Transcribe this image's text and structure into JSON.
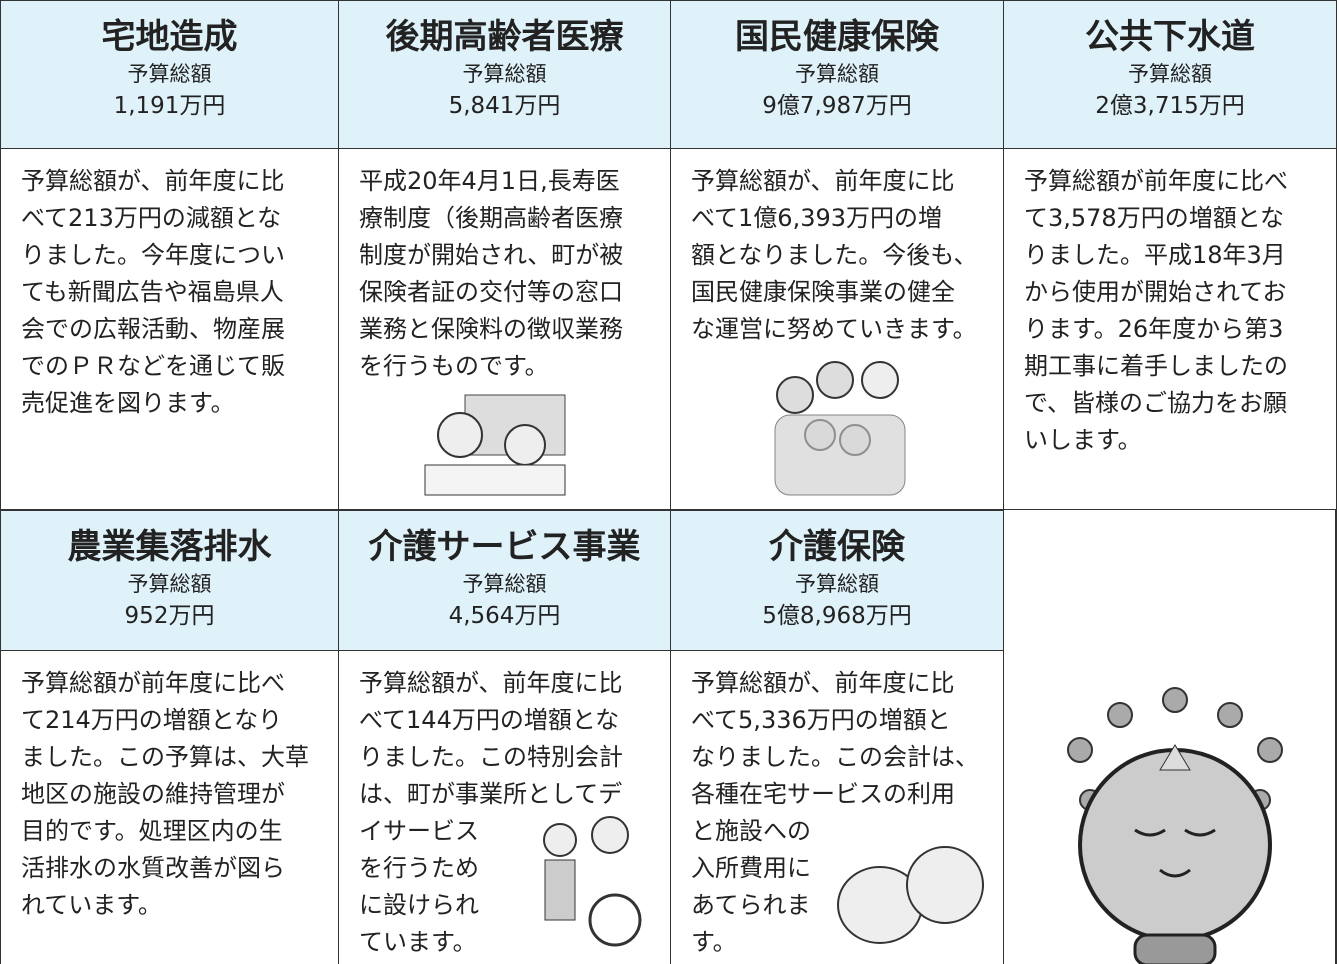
{
  "cells": [
    {
      "title": "宅地造成",
      "budget_label": "予算総額",
      "amount": "1,191万円",
      "body": [
        "予算総額が、前年度に比",
        "べて213万円の減額とな",
        "りました。今年度につい",
        "ても新聞広告や福島県人",
        "会での広報活動、物産展",
        "でのＰＲなどを通じて販",
        "売促進を図ります。"
      ]
    },
    {
      "title": "後期高齢者医療",
      "budget_label": "予算総額",
      "amount": "5,841万円",
      "body": [
        "平成20年4月1日,長寿医",
        "療制度（後期高齢者医療",
        "制度が開始され、町が被",
        "保険者証の交付等の窓口",
        "業務と保険料の徴収業務",
        "を行うものです。"
      ]
    },
    {
      "title": "国民健康保険",
      "budget_label": "予算総額",
      "amount": "9億7,987万円",
      "body": [
        "予算総額が、前年度に比",
        "べて1億6,393万円の増",
        "額となりました。今後も、",
        "国民健康保険事業の健全",
        "な運営に努めていきます。"
      ]
    },
    {
      "title": "公共下水道",
      "budget_label": "予算総額",
      "amount": "2億3,715万円",
      "body": [
        "予算総額が前年度に比べ",
        "て3,578万円の増額とな",
        "りました。平成18年3月",
        "から使用が開始されてお",
        "ります。26年度から第3",
        "期工事に着手しましたの",
        "で、皆様のご協力をお願",
        "いします。"
      ]
    },
    {
      "title": "農業集落排水",
      "budget_label": "予算総額",
      "amount": "952万円",
      "body": [
        "予算総額が前年度に比べ",
        "て214万円の増額となり",
        "ました。この予算は、大草",
        "地区の施設の維持管理が",
        "目的です。処理区内の生",
        "活排水の水質改善が図ら",
        "れています。"
      ]
    },
    {
      "title": "介護サービス事業",
      "budget_label": "予算総額",
      "amount": "4,564万円",
      "body": [
        "予算総額が、前年度に比",
        "べて144万円の増額とな",
        "りました。この特別会計",
        "は、町が事業所としてデ",
        "イサービス",
        "を行うため",
        "に設けられ",
        "ています。"
      ]
    },
    {
      "title": "介護保険",
      "budget_label": "予算総額",
      "amount": "5億8,968万円",
      "body": [
        "予算総額が、前年度に比",
        "べて5,336万円の増額と",
        "なりました。この会計は、",
        "各種在宅サービスの利用",
        "と施設への",
        "入所費用に",
        "あてられま",
        "す。"
      ]
    }
  ]
}
